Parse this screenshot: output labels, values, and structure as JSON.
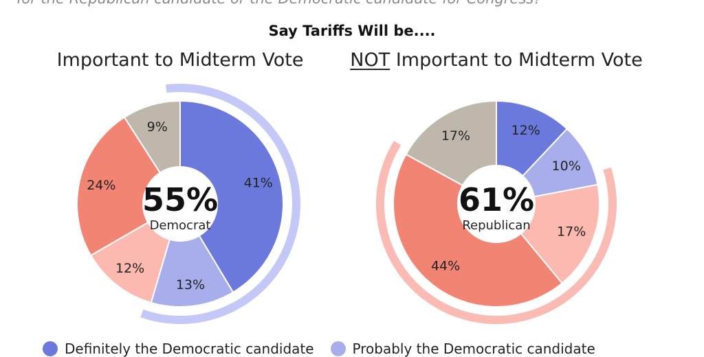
{
  "question": "for the Republican candidate or the Democratic candidate for Congress?",
  "title": "Say Tariffs Will be....",
  "colors": {
    "definitely_dem": "#6b79dd",
    "probably_dem": "#a7aeeb",
    "probably_rep": "#fbb9b0",
    "definitely_rep": "#f28473",
    "undecided": "#bfb7ab",
    "dem_arc": "#c3c8f6",
    "rep_arc": "#fbbbb5"
  },
  "legend": [
    {
      "label": "Definitely the Democratic candidate",
      "color_key": "definitely_dem"
    },
    {
      "label": "Probably the Democratic candidate",
      "color_key": "probably_dem"
    }
  ],
  "chart_data": [
    {
      "type": "pie",
      "subtitle_prefix": "",
      "subtitle_rest": "Important to Midterm Vote",
      "center_value": "55%",
      "center_label": "Democrat",
      "highlight": "dem",
      "slices": [
        {
          "label": "41%",
          "value": 41,
          "color_key": "definitely_dem"
        },
        {
          "label": "13%",
          "value": 13,
          "color_key": "probably_dem"
        },
        {
          "label": "12%",
          "value": 12,
          "color_key": "probably_rep"
        },
        {
          "label": "24%",
          "value": 24,
          "color_key": "definitely_rep"
        },
        {
          "label": "9%",
          "value": 9,
          "color_key": "undecided"
        }
      ]
    },
    {
      "type": "pie",
      "subtitle_prefix": "NOT",
      "subtitle_rest": " Important to Midterm Vote",
      "center_value": "61%",
      "center_label": "Republican",
      "highlight": "rep",
      "slices": [
        {
          "label": "12%",
          "value": 12,
          "color_key": "definitely_dem"
        },
        {
          "label": "10%",
          "value": 10,
          "color_key": "probably_dem"
        },
        {
          "label": "17%",
          "value": 17,
          "color_key": "probably_rep"
        },
        {
          "label": "44%",
          "value": 44,
          "color_key": "definitely_rep"
        },
        {
          "label": "17%",
          "value": 17,
          "color_key": "undecided"
        }
      ]
    }
  ]
}
